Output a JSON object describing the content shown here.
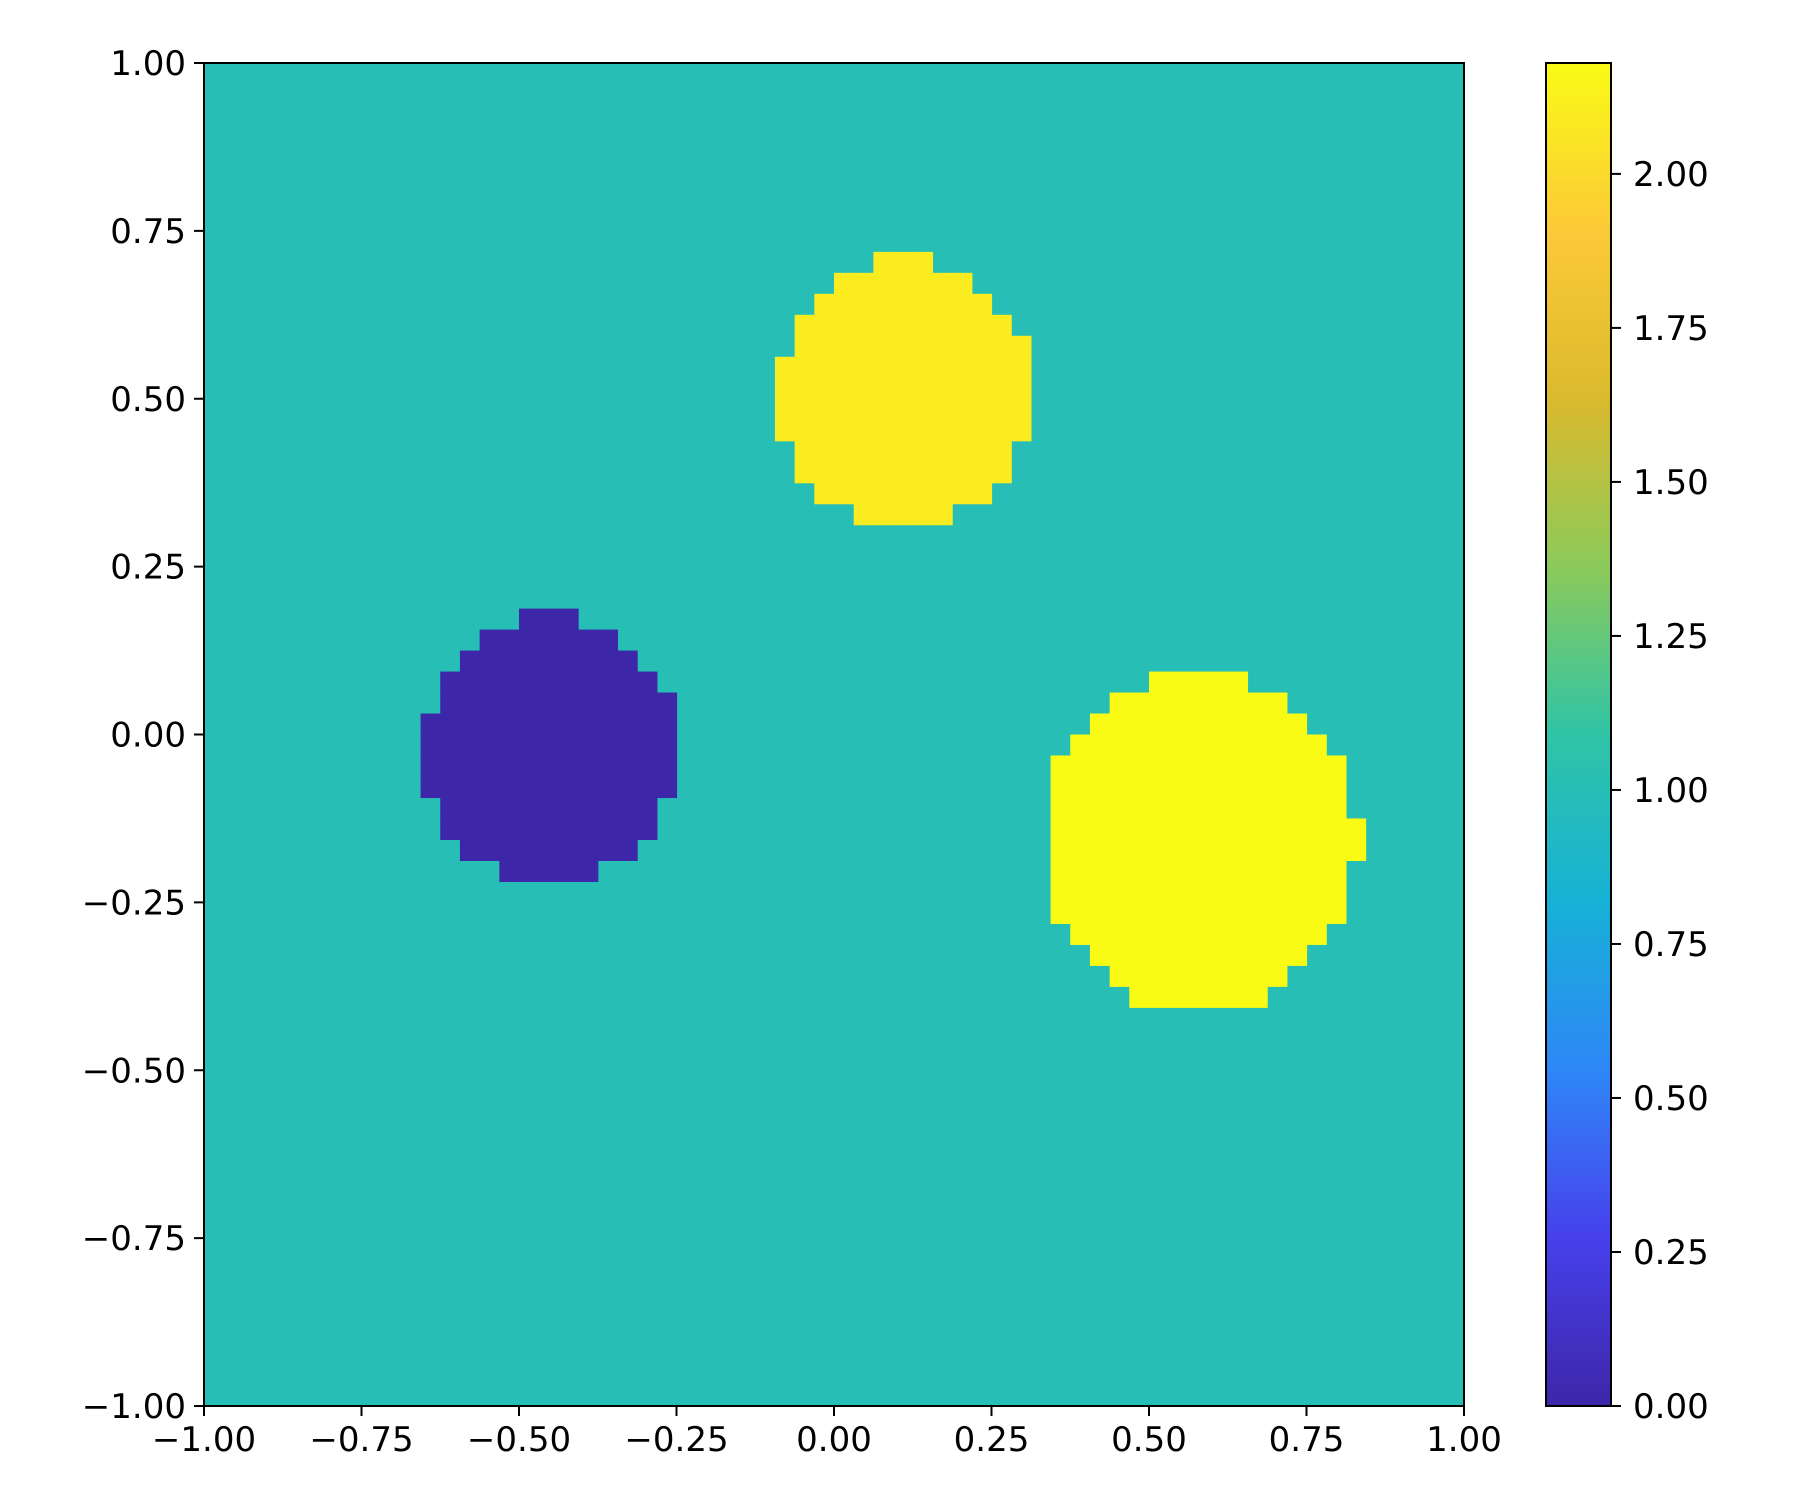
{
  "chart_data": {
    "type": "heatmap",
    "title": "",
    "xlabel": "",
    "ylabel": "",
    "xlim": [
      -1.0,
      1.0
    ],
    "ylim": [
      -1.0,
      1.0
    ],
    "grid": false,
    "x_ticks": [
      "−1.00",
      "−0.75",
      "−0.50",
      "−0.25",
      "0.00",
      "0.25",
      "0.50",
      "0.75",
      "1.00"
    ],
    "y_ticks": [
      "−1.00",
      "−0.75",
      "−0.50",
      "−0.25",
      "0.00",
      "0.25",
      "0.50",
      "0.75",
      "1.00"
    ],
    "background_value": 1.0,
    "grid_resolution": 64,
    "regions": [
      {
        "shape": "disc",
        "center": [
          -0.45,
          -0.02
        ],
        "radius": 0.2,
        "value": 0.0
      },
      {
        "shape": "disc",
        "center": [
          0.11,
          0.51
        ],
        "radius": 0.2,
        "value": 2.1
      },
      {
        "shape": "disc",
        "center": [
          0.58,
          -0.16
        ],
        "radius": 0.25,
        "value": 2.18
      }
    ],
    "colorbar": {
      "vmin": 0.0,
      "vmax": 2.18,
      "ticks": [
        "0.00",
        "0.25",
        "0.50",
        "0.75",
        "1.00",
        "1.25",
        "1.50",
        "1.75",
        "2.00"
      ],
      "colormap": [
        "#3e26a8",
        "#4740ec",
        "#2e87f7",
        "#17b1d6",
        "#2fc4a6",
        "#8cca5a",
        "#dbba2d",
        "#fcc938",
        "#f9fb15"
      ]
    }
  }
}
